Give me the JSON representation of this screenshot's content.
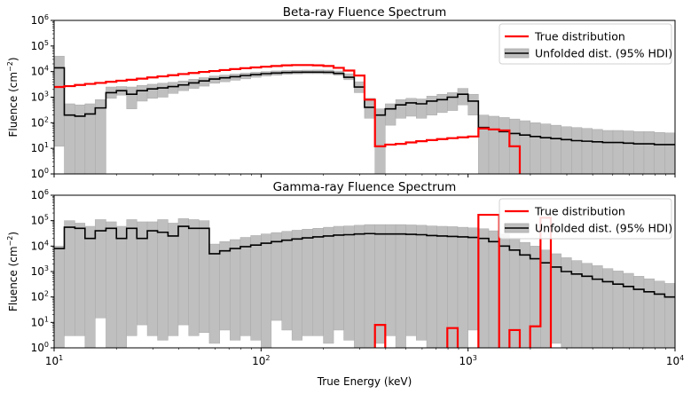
{
  "colors": {
    "true_line": "#ff0000",
    "unfolded_line": "#000000",
    "hdi_fill": "#bfbfbf",
    "hdi_edge": "#a8a8a8",
    "axis": "#000000",
    "background": "#ffffff"
  },
  "chart_data": [
    {
      "type": "line",
      "title": "Beta-ray Fluence Spectrum",
      "xlabel": "",
      "ylabel": "Fluence (cm",
      "ylabel_sup": "−2",
      "ylabel_tail": ")",
      "xscale": "log",
      "yscale": "log",
      "xlim": [
        10,
        10000
      ],
      "ylim": [
        1,
        1000000
      ],
      "xtick_labels_visible": false,
      "yticks": [
        {
          "v": 1,
          "b": "10",
          "e": "0"
        },
        {
          "v": 10,
          "b": "10",
          "e": "1"
        },
        {
          "v": 100,
          "b": "10",
          "e": "2"
        },
        {
          "v": 1000,
          "b": "10",
          "e": "3"
        },
        {
          "v": 10000,
          "b": "10",
          "e": "4"
        },
        {
          "v": 100000,
          "b": "10",
          "e": "5"
        },
        {
          "v": 1000000,
          "b": "10",
          "e": "6"
        }
      ],
      "legend": {
        "placement": "upper-right",
        "entries": [
          {
            "label": "True distribution",
            "kind": "true"
          },
          {
            "label": "Unfolded dist. (95% HDI)",
            "kind": "unfolded"
          }
        ]
      },
      "bin_edges": [
        10,
        11.2,
        12.6,
        14.1,
        15.8,
        17.8,
        20,
        22.4,
        25.1,
        28.2,
        31.6,
        35.5,
        39.8,
        44.7,
        50.1,
        56.2,
        63.1,
        70.8,
        79.4,
        89.1,
        100,
        112,
        126,
        141,
        158,
        178,
        200,
        224,
        251,
        282,
        316,
        355,
        398,
        447,
        501,
        562,
        631,
        708,
        794,
        891,
        1000,
        1122,
        1259,
        1413,
        1585,
        1778,
        1995,
        2239,
        2512,
        2818,
        3162,
        3548,
        3981,
        4467,
        5012,
        5623,
        6310,
        7079,
        7943,
        8913,
        10000
      ],
      "series": [
        {
          "name": "True distribution",
          "kind": "true",
          "values": [
            2500,
            2700,
            3000,
            3300,
            3600,
            4000,
            4400,
            4800,
            5300,
            5900,
            6500,
            7200,
            8000,
            8800,
            9700,
            10500,
            11500,
            12500,
            13500,
            14500,
            15500,
            16500,
            17500,
            18000,
            18000,
            17500,
            16500,
            14000,
            11000,
            7000,
            800,
            12,
            14,
            15,
            17,
            19,
            21,
            23,
            25,
            27,
            29,
            60,
            55,
            50,
            12,
            0,
            0,
            0,
            0,
            0,
            0,
            0,
            0,
            0,
            0,
            0,
            0,
            0,
            0,
            0
          ]
        },
        {
          "name": "Unfolded dist. (95% HDI)",
          "kind": "unfolded",
          "values": [
            14000,
            200,
            180,
            220,
            380,
            1500,
            1800,
            1300,
            1800,
            2100,
            2300,
            2600,
            3000,
            3600,
            4300,
            5100,
            5700,
            6300,
            7000,
            7600,
            8300,
            8800,
            9200,
            9400,
            9500,
            9500,
            9400,
            8500,
            6000,
            2500,
            400,
            200,
            350,
            500,
            600,
            550,
            700,
            800,
            1000,
            1300,
            700,
            65,
            55,
            45,
            38,
            33,
            29,
            26,
            24,
            22,
            20,
            19,
            18,
            17,
            17,
            16,
            15,
            15,
            14,
            14
          ],
          "hdi_lower": [
            12,
            0,
            0,
            0,
            0,
            900,
            1200,
            350,
            700,
            900,
            1000,
            1400,
            1800,
            2200,
            2700,
            3500,
            4000,
            4600,
            5200,
            6000,
            6700,
            7200,
            7800,
            8100,
            8300,
            8300,
            8100,
            7200,
            4800,
            1500,
            150,
            0,
            80,
            150,
            180,
            150,
            200,
            250,
            300,
            500,
            200,
            0,
            0,
            0,
            0,
            0,
            0,
            0,
            0,
            0,
            0,
            0,
            0,
            0,
            0,
            0,
            0,
            0,
            0,
            0
          ],
          "hdi_upper": [
            40000,
            550,
            500,
            550,
            800,
            2500,
            2600,
            2500,
            2900,
            3200,
            3500,
            3800,
            4300,
            5000,
            5800,
            6700,
            7300,
            8000,
            8700,
            9400,
            10000,
            10600,
            11000,
            11200,
            11400,
            11500,
            11400,
            10500,
            8200,
            4000,
            900,
            350,
            550,
            800,
            900,
            850,
            1100,
            1300,
            1500,
            2200,
            1300,
            200,
            180,
            160,
            140,
            120,
            100,
            90,
            80,
            70,
            65,
            60,
            55,
            50,
            50,
            48,
            45,
            45,
            42,
            40
          ]
        }
      ]
    },
    {
      "type": "line",
      "title": "Gamma-ray Fluence Spectrum",
      "xlabel": "True Energy (keV)",
      "ylabel": "Fluence (cm",
      "ylabel_sup": "−2",
      "ylabel_tail": ")",
      "xscale": "log",
      "yscale": "log",
      "xlim": [
        10,
        10000
      ],
      "ylim": [
        1,
        1000000
      ],
      "xtick_labels_visible": true,
      "xticks": [
        {
          "v": 10,
          "b": "10",
          "e": "1"
        },
        {
          "v": 100,
          "b": "10",
          "e": "2"
        },
        {
          "v": 1000,
          "b": "10",
          "e": "3"
        },
        {
          "v": 10000,
          "b": "10",
          "e": "4"
        }
      ],
      "yticks": [
        {
          "v": 1,
          "b": "10",
          "e": "0"
        },
        {
          "v": 10,
          "b": "10",
          "e": "1"
        },
        {
          "v": 100,
          "b": "10",
          "e": "2"
        },
        {
          "v": 1000,
          "b": "10",
          "e": "3"
        },
        {
          "v": 10000,
          "b": "10",
          "e": "4"
        },
        {
          "v": 100000,
          "b": "10",
          "e": "5"
        },
        {
          "v": 1000000,
          "b": "10",
          "e": "6"
        }
      ],
      "legend": {
        "placement": "upper-right",
        "entries": [
          {
            "label": "True distribution",
            "kind": "true"
          },
          {
            "label": "Unfolded dist. (95% HDI)",
            "kind": "unfolded"
          }
        ]
      },
      "bin_edges": [
        10,
        11.2,
        12.6,
        14.1,
        15.8,
        17.8,
        20,
        22.4,
        25.1,
        28.2,
        31.6,
        35.5,
        39.8,
        44.7,
        50.1,
        56.2,
        63.1,
        70.8,
        79.4,
        89.1,
        100,
        112,
        126,
        141,
        158,
        178,
        200,
        224,
        251,
        282,
        316,
        355,
        398,
        447,
        501,
        562,
        631,
        708,
        794,
        891,
        1000,
        1122,
        1259,
        1413,
        1585,
        1778,
        1995,
        2239,
        2512,
        2818,
        3162,
        3548,
        3981,
        4467,
        5012,
        5623,
        6310,
        7079,
        7943,
        8913,
        10000
      ],
      "series": [
        {
          "name": "True distribution",
          "kind": "true",
          "values": [
            0,
            0,
            0,
            0,
            0,
            0,
            0,
            0,
            0,
            0,
            0,
            0,
            0,
            0,
            0,
            0,
            0,
            0,
            0,
            0,
            0,
            0,
            0,
            0,
            0,
            0,
            0,
            0,
            0,
            0,
            0,
            8,
            0,
            0,
            0,
            0,
            0,
            0,
            6,
            0,
            0,
            170000,
            170000,
            0,
            5,
            0,
            7,
            130000,
            0,
            0,
            0,
            0,
            0,
            0,
            0,
            0,
            0,
            0,
            0,
            0
          ]
        },
        {
          "name": "Unfolded dist. (95% HDI)",
          "kind": "unfolded",
          "values": [
            8000,
            55000,
            50000,
            20000,
            40000,
            50000,
            20000,
            50000,
            20000,
            40000,
            35000,
            25000,
            60000,
            50000,
            50000,
            5000,
            6500,
            8000,
            9500,
            11000,
            13000,
            15000,
            17000,
            19000,
            21000,
            23000,
            25000,
            27000,
            28000,
            30000,
            31000,
            30000,
            30000,
            30000,
            29000,
            28000,
            26000,
            25000,
            24000,
            23000,
            22000,
            20000,
            15000,
            10000,
            7000,
            4500,
            3200,
            2200,
            1500,
            1000,
            800,
            650,
            500,
            400,
            320,
            260,
            200,
            160,
            130,
            100
          ],
          "hdi_lower": [
            0,
            3,
            3,
            0,
            15,
            0,
            0,
            3,
            8,
            3,
            2,
            3,
            8,
            3,
            4,
            1.5,
            5,
            2,
            3,
            2,
            1,
            12,
            5,
            2,
            3,
            3,
            1.5,
            5,
            2,
            0,
            0,
            1.5,
            3,
            0,
            3,
            2,
            0,
            0,
            1,
            0,
            5,
            0,
            0,
            0,
            0,
            0,
            0,
            0,
            1.5,
            0,
            0,
            0,
            0,
            0,
            0,
            0,
            0,
            0,
            0,
            0
          ],
          "hdi_upper": [
            10000,
            100000,
            80000,
            60000,
            110000,
            90000,
            60000,
            110000,
            90000,
            90000,
            110000,
            80000,
            120000,
            110000,
            100000,
            12000,
            15000,
            18000,
            22000,
            26000,
            30000,
            34000,
            38000,
            42000,
            46000,
            50000,
            55000,
            60000,
            62000,
            66000,
            70000,
            70000,
            70000,
            70000,
            68000,
            66000,
            62000,
            60000,
            58000,
            55000,
            52000,
            48000,
            40000,
            30000,
            20000,
            14000,
            10000,
            7000,
            5000,
            3500,
            2700,
            2100,
            1700,
            1300,
            1050,
            850,
            650,
            520,
            420,
            340
          ]
        }
      ]
    }
  ]
}
